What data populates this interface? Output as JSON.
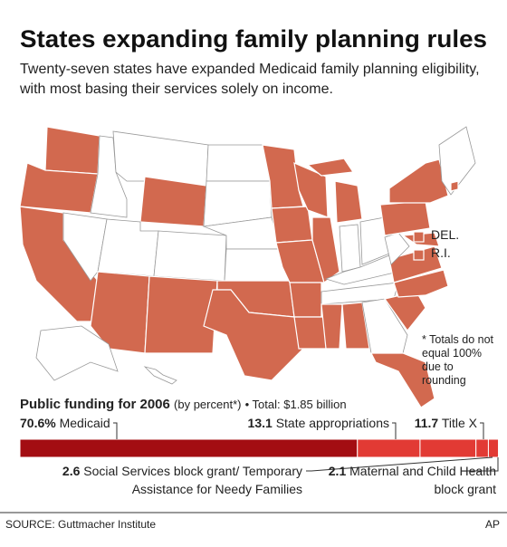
{
  "title": "States expanding family planning rules",
  "subtitle": "Twenty-seven states have expanded Medicaid family planning eligibility, with most basing their services solely on income.",
  "map_legend": [
    "DEL.",
    "R.I."
  ],
  "footnote": "* Totals do not equal 100% due to rounding",
  "chart_data": {
    "type": "stacked_bar",
    "title": "Public funding for 2006",
    "unit_note": "(by percent*)",
    "total": "• Total: $1.85 billion",
    "categories": [
      "Medicaid",
      "State appropriations",
      "Title X",
      "Social Services block grant/ Temporary Assistance for Needy Families",
      "Maternal and Child Health block grant"
    ],
    "values": [
      70.6,
      13.1,
      11.7,
      2.6,
      2.1
    ],
    "value_labels": [
      "70.6%",
      "13.1",
      "11.7",
      "2.6",
      "2.1"
    ],
    "colors": [
      "#a30d12",
      "#e23a34",
      "#e23a34",
      "#e23a34",
      "#e23a34"
    ],
    "xlim": [
      0,
      100
    ]
  },
  "source": "SOURCE: Guttmacher Institute",
  "credit": "AP"
}
